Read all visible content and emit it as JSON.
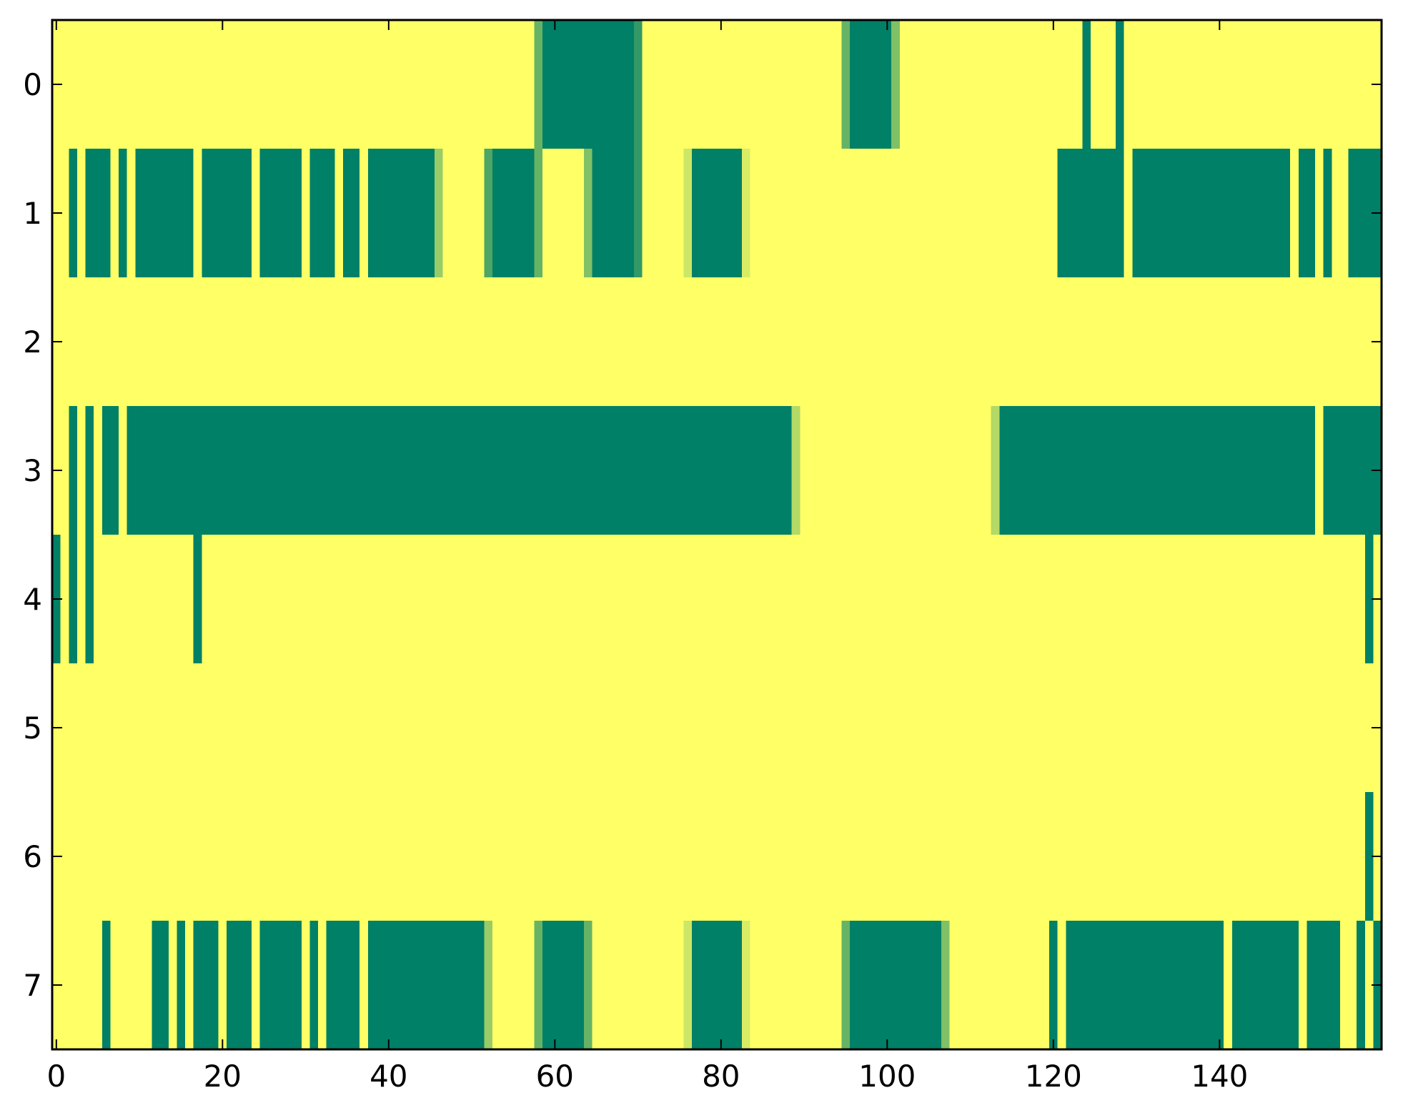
{
  "chart_data": {
    "type": "heatmap",
    "title": "",
    "xlabel": "",
    "ylabel": "",
    "xlim": [
      -0.5,
      159.5
    ],
    "ylim": [
      7.5,
      -0.5
    ],
    "n_columns": 160,
    "rows": [
      0,
      1,
      2,
      3,
      4,
      5,
      6,
      7
    ],
    "x_ticks": [
      0,
      20,
      40,
      60,
      80,
      100,
      120,
      140
    ],
    "y_ticks": [
      0,
      1,
      2,
      3,
      4,
      5,
      6,
      7
    ],
    "colormap": {
      "low": "#ffff66",
      "high": "#008066"
    },
    "value_range": [
      0,
      1
    ],
    "grid": false,
    "legend": "none",
    "cells": [
      {
        "row": 0,
        "segments": [
          [
            58,
            58,
            0.6
          ],
          [
            59,
            69,
            1
          ],
          [
            70,
            70,
            0.8
          ],
          [
            95,
            95,
            0.6
          ],
          [
            96,
            100,
            1
          ],
          [
            101,
            101,
            0.5
          ],
          [
            124,
            124,
            1
          ],
          [
            128,
            128,
            1
          ]
        ]
      },
      {
        "row": 1,
        "segments": [
          [
            2,
            2,
            1
          ],
          [
            4,
            6,
            1
          ],
          [
            8,
            8,
            1
          ],
          [
            10,
            16,
            1
          ],
          [
            18,
            23,
            1
          ],
          [
            25,
            29,
            1
          ],
          [
            31,
            33,
            1
          ],
          [
            35,
            36,
            1
          ],
          [
            38,
            45,
            1
          ],
          [
            46,
            46,
            0.4
          ],
          [
            52,
            52,
            0.7
          ],
          [
            53,
            57,
            1
          ],
          [
            58,
            58,
            0.6
          ],
          [
            64,
            64,
            0.5
          ],
          [
            65,
            69,
            1
          ],
          [
            70,
            70,
            0.8
          ],
          [
            76,
            76,
            0.2
          ],
          [
            77,
            82,
            1
          ],
          [
            83,
            83,
            0.15
          ],
          [
            121,
            128,
            1
          ],
          [
            130,
            148,
            1
          ],
          [
            150,
            151,
            1
          ],
          [
            153,
            153,
            1
          ],
          [
            156,
            159,
            1
          ]
        ]
      },
      {
        "row": 2,
        "segments": []
      },
      {
        "row": 3,
        "segments": [
          [
            2,
            2,
            1
          ],
          [
            4,
            4,
            1
          ],
          [
            6,
            7,
            1
          ],
          [
            9,
            88,
            1
          ],
          [
            89,
            89,
            0.3
          ],
          [
            113,
            113,
            0.3
          ],
          [
            114,
            151,
            1
          ],
          [
            153,
            159,
            1
          ]
        ]
      },
      {
        "row": 4,
        "segments": [
          [
            0,
            0,
            1
          ],
          [
            2,
            2,
            1
          ],
          [
            4,
            4,
            1
          ],
          [
            17,
            17,
            1
          ],
          [
            158,
            158,
            1
          ]
        ]
      },
      {
        "row": 5,
        "segments": []
      },
      {
        "row": 6,
        "segments": [
          [
            158,
            158,
            1
          ]
        ]
      },
      {
        "row": 7,
        "segments": [
          [
            6,
            6,
            1
          ],
          [
            12,
            13,
            1
          ],
          [
            15,
            15,
            1
          ],
          [
            17,
            19,
            1
          ],
          [
            21,
            23,
            1
          ],
          [
            25,
            29,
            1
          ],
          [
            31,
            31,
            1
          ],
          [
            33,
            36,
            1
          ],
          [
            38,
            51,
            1
          ],
          [
            52,
            52,
            0.4
          ],
          [
            58,
            58,
            0.6
          ],
          [
            59,
            63,
            1
          ],
          [
            64,
            64,
            0.6
          ],
          [
            76,
            76,
            0.2
          ],
          [
            77,
            82,
            1
          ],
          [
            83,
            83,
            0.15
          ],
          [
            95,
            95,
            0.6
          ],
          [
            96,
            106,
            1
          ],
          [
            107,
            107,
            0.5
          ],
          [
            120,
            120,
            1
          ],
          [
            122,
            140,
            1
          ],
          [
            142,
            149,
            1
          ],
          [
            151,
            154,
            1
          ],
          [
            157,
            157,
            1
          ],
          [
            159,
            159,
            1
          ]
        ]
      }
    ]
  }
}
